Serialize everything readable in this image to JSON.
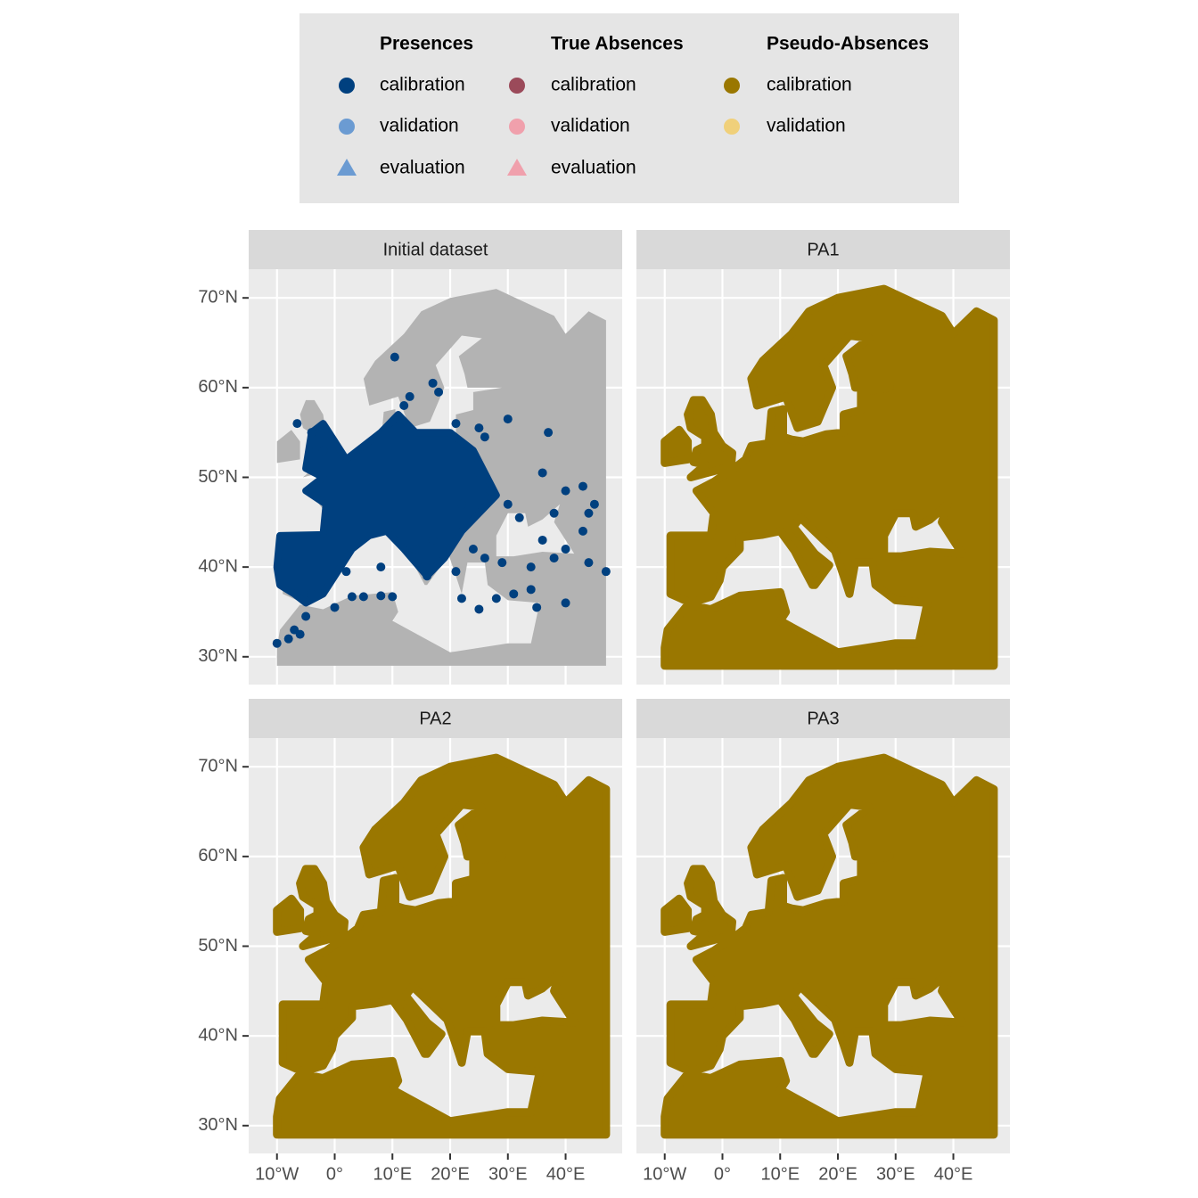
{
  "chart_data": {
    "type": "scatter",
    "legend": {
      "groups": [
        {
          "title": "Presences",
          "entries": [
            {
              "label": "calibration",
              "color": "#00407f",
              "shape": "circle"
            },
            {
              "label": "validation",
              "color": "#6b9bd2",
              "shape": "circle"
            },
            {
              "label": "evaluation",
              "color": "#6b9bd2",
              "shape": "triangle"
            }
          ]
        },
        {
          "title": "True Absences",
          "entries": [
            {
              "label": "calibration",
              "color": "#9b4a5a",
              "shape": "circle"
            },
            {
              "label": "validation",
              "color": "#f0a0ac",
              "shape": "circle"
            },
            {
              "label": "evaluation",
              "color": "#f0a0ac",
              "shape": "triangle"
            }
          ]
        },
        {
          "title": "Pseudo-Absences",
          "entries": [
            {
              "label": "calibration",
              "color": "#9a7700",
              "shape": "circle"
            },
            {
              "label": "validation",
              "color": "#f0d07a",
              "shape": "circle"
            }
          ]
        }
      ]
    },
    "facets": [
      {
        "title": "Initial dataset",
        "x": [
          -10,
          -8,
          -7,
          -5,
          -6,
          0,
          3,
          5,
          8,
          10,
          10.4,
          17,
          18,
          13,
          12,
          21,
          25,
          26,
          30,
          37,
          36,
          40,
          43,
          43,
          44,
          47,
          40,
          35,
          34,
          31,
          28,
          25,
          22,
          38,
          34,
          32,
          30,
          27,
          25,
          22,
          17,
          14,
          16,
          8,
          2,
          -4,
          -6.5,
          -4,
          -2,
          24,
          21,
          26,
          36,
          40,
          44,
          38,
          45,
          29
        ],
        "y": [
          31.5,
          32,
          33,
          34.5,
          32.5,
          35.5,
          36.7,
          36.7,
          36.8,
          36.7,
          63.4,
          60.5,
          59.5,
          59,
          58,
          56,
          55.5,
          54.5,
          56.5,
          55,
          50.5,
          48.5,
          49,
          44,
          40.5,
          39.5,
          36,
          35.5,
          37.5,
          37,
          36.5,
          35.3,
          36.5,
          41,
          40,
          45.5,
          47,
          48.5,
          50.5,
          47,
          43,
          42,
          39,
          40,
          39.5,
          37,
          56,
          55,
          53,
          42,
          39.5,
          41,
          43,
          42,
          46,
          46,
          47,
          40.5
        ]
      },
      {
        "title": "PA1"
      },
      {
        "title": "PA2"
      },
      {
        "title": "PA3"
      }
    ],
    "xlim": [
      -14.9,
      49.8
    ],
    "ylim": [
      26.9,
      73.2
    ],
    "xticks": [
      {
        "value": -10,
        "label": "10°W"
      },
      {
        "value": 0,
        "label": "0°"
      },
      {
        "value": 10,
        "label": "10°E"
      },
      {
        "value": 20,
        "label": "20°E"
      },
      {
        "value": 30,
        "label": "30°E"
      },
      {
        "value": 40,
        "label": "40°E"
      }
    ],
    "yticks": [
      {
        "value": 30,
        "label": "30°N"
      },
      {
        "value": 40,
        "label": "40°N"
      },
      {
        "value": 50,
        "label": "50°N"
      },
      {
        "value": 60,
        "label": "60°N"
      },
      {
        "value": 70,
        "label": "70°N"
      }
    ],
    "grid": true
  }
}
